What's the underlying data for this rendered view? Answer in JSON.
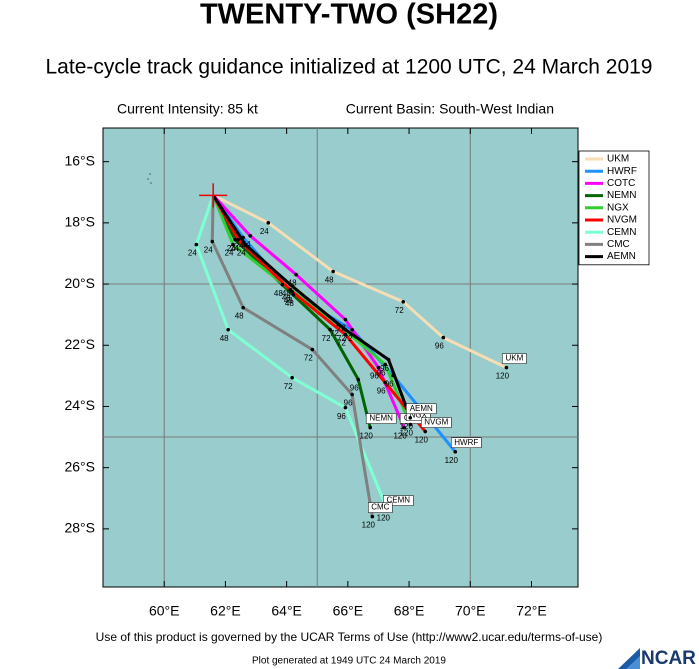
{
  "chart_data": {
    "type": "track",
    "title": "TWENTY-TWO (SH22)",
    "subtitle": "Late-cycle track guidance initialized at 1200 UTC, 24 March 2019",
    "intensity": "Current Intensity: 85 kt",
    "basin": "Current Basin: South-West Indian",
    "xlim": [
      58,
      73.52
    ],
    "ylim": [
      -29.9,
      -14.9
    ],
    "xticks": [
      {
        "value": 60,
        "label": "60°E"
      },
      {
        "value": 62,
        "label": "62°E"
      },
      {
        "value": 64,
        "label": "64°E"
      },
      {
        "value": 66,
        "label": "66°E"
      },
      {
        "value": 68,
        "label": "68°E"
      },
      {
        "value": 70,
        "label": "70°E"
      },
      {
        "value": 72,
        "label": "72°E"
      }
    ],
    "yticks": [
      {
        "value": -16,
        "label": "16°S"
      },
      {
        "value": -18,
        "label": "18°S"
      },
      {
        "value": -20,
        "label": "20°S"
      },
      {
        "value": -22,
        "label": "22°S"
      },
      {
        "value": -24,
        "label": "24°S"
      },
      {
        "value": -26,
        "label": "26°S"
      },
      {
        "value": -28,
        "label": "28°S"
      }
    ],
    "xgrid": [
      60,
      65,
      70
    ],
    "ygrid": [
      -20,
      -25
    ],
    "series": [
      {
        "name": "UKM",
        "color": "#f5deb3",
        "hours": [
          0,
          24,
          48,
          72,
          96,
          120
        ],
        "x": [
          61.6,
          63.4,
          65.52,
          67.81,
          69.12,
          71.18
        ],
        "values": [
          -17.1,
          -18.0,
          -19.59,
          -20.58,
          -21.75,
          -22.73
        ]
      },
      {
        "name": "HWRF",
        "color": "#1e90ff",
        "hours": [
          0,
          24,
          48,
          72,
          96,
          120
        ],
        "x": [
          61.6,
          62.58,
          64.22,
          66.14,
          67.48,
          69.51
        ],
        "values": [
          -17.1,
          -18.48,
          -20.35,
          -21.49,
          -22.99,
          -25.48
        ]
      },
      {
        "name": "COTC",
        "color": "#ff00ff",
        "hours": [
          0,
          24,
          48,
          72,
          96,
          120
        ],
        "x": [
          61.6,
          62.81,
          64.31,
          65.92,
          67.0,
          67.84
        ],
        "values": [
          -17.1,
          -18.42,
          -19.69,
          -21.16,
          -22.73,
          -24.69
        ]
      },
      {
        "name": "NEMN",
        "color": "#006400",
        "hours": [
          0,
          24,
          48,
          72,
          96,
          120
        ],
        "x": [
          61.6,
          62.32,
          63.86,
          65.42,
          66.34,
          66.73
        ],
        "values": [
          -17.1,
          -18.55,
          -20.02,
          -21.49,
          -23.12,
          -24.69
        ]
      },
      {
        "name": "NGX",
        "color": "#32cd32",
        "hours": [
          0,
          24,
          48,
          72,
          96,
          120
        ],
        "x": [
          61.6,
          62.25,
          64.12,
          65.69,
          67.22,
          68.04
        ],
        "values": [
          -17.1,
          -18.71,
          -20.18,
          -21.33,
          -22.63,
          -24.59
        ]
      },
      {
        "name": "NVGM",
        "color": "#ff0000",
        "hours": [
          0,
          24,
          48,
          72,
          96,
          120
        ],
        "x": [
          61.6,
          62.42,
          64.18,
          65.92,
          67.22,
          68.53
        ],
        "values": [
          -17.1,
          -18.55,
          -20.25,
          -21.65,
          -23.22,
          -24.82
        ]
      },
      {
        "name": "CEMN",
        "color": "#7fffd4",
        "hours": [
          0,
          24,
          48,
          72,
          96,
          120
        ],
        "x": [
          61.6,
          61.05,
          62.09,
          64.18,
          65.92,
          67.29
        ],
        "values": [
          -17.1,
          -18.71,
          -21.49,
          -23.06,
          -24.04,
          -27.37
        ]
      },
      {
        "name": "CMC",
        "color": "#808080",
        "hours": [
          0,
          24,
          48,
          72,
          96,
          120
        ],
        "x": [
          61.6,
          61.57,
          62.58,
          64.84,
          66.14,
          66.8
        ],
        "values": [
          -17.1,
          -18.61,
          -20.77,
          -22.14,
          -23.61,
          -27.6
        ]
      },
      {
        "name": "AEMN",
        "color": "#000000",
        "hours": [
          0,
          24,
          48,
          72,
          96,
          120
        ],
        "x": [
          61.6,
          62.65,
          64.12,
          65.92,
          67.33,
          68.04
        ],
        "values": [
          -17.1,
          -18.71,
          -20.02,
          -21.49,
          -22.47,
          -24.37
        ]
      }
    ],
    "footer": "Use of this product is governed by the UCAR Terms of Use (http://www2.ucar.edu/terms-of-use)",
    "generated": "Plot generated at 1949 UTC  24 March 2019",
    "logo": "NCAR"
  }
}
